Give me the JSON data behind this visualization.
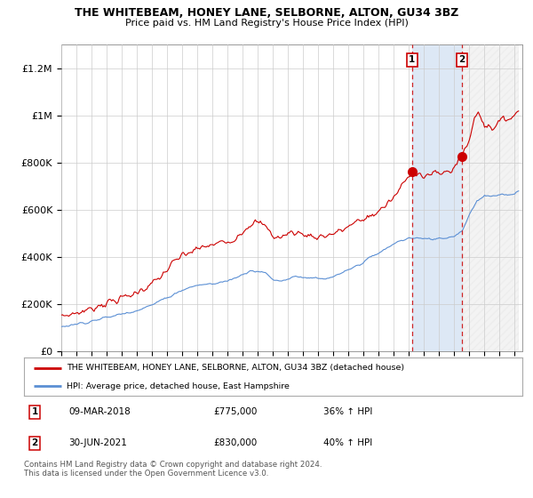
{
  "title": "THE WHITEBEAM, HONEY LANE, SELBORNE, ALTON, GU34 3BZ",
  "subtitle": "Price paid vs. HM Land Registry's House Price Index (HPI)",
  "ylim": [
    0,
    1300000
  ],
  "yticks": [
    0,
    200000,
    400000,
    600000,
    800000,
    1000000,
    1200000
  ],
  "ytick_labels": [
    "£0",
    "£200K",
    "£400K",
    "£600K",
    "£800K",
    "£1M",
    "£1.2M"
  ],
  "year_start": 1995,
  "year_end": 2025,
  "red_color": "#cc0000",
  "blue_color": "#5b8fd4",
  "shade_color": "#dde8f5",
  "hatch_color": "#cccccc",
  "marker1_year": 2018.2,
  "marker1_value": 775000,
  "marker2_year": 2021.5,
  "marker2_value": 830000,
  "legend_red": "THE WHITEBEAM, HONEY LANE, SELBORNE, ALTON, GU34 3BZ (detached house)",
  "legend_blue": "HPI: Average price, detached house, East Hampshire",
  "footer": "Contains HM Land Registry data © Crown copyright and database right 2024.\nThis data is licensed under the Open Government Licence v3.0.",
  "background_color": "#ffffff",
  "grid_color": "#cccccc"
}
